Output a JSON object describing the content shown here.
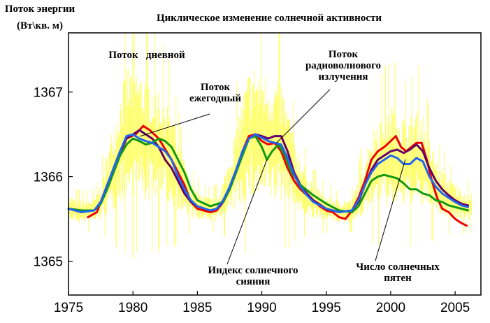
{
  "chart_data": {
    "type": "line",
    "title": "Циклическое изменение солнечной активности",
    "ylabel": [
      "Поток энергии",
      "(Вт\\кв. м)"
    ],
    "xlabel": "",
    "xlim": [
      1975,
      2007
    ],
    "ylim": [
      1364.6,
      1367.7
    ],
    "x_ticks": [
      1975,
      1980,
      1985,
      1990,
      1995,
      2000,
      2005
    ],
    "y_ticks": [
      1365,
      1366,
      1367
    ],
    "grid": false,
    "legend": "none",
    "colors": {
      "daily": "#ffff33",
      "sunspots": "#ee0000",
      "radio": "#660066",
      "sunshine": "#119911",
      "annual": "#2266ee"
    },
    "series": [
      {
        "key": "sunspots",
        "points": [
          [
            1976.5,
            1365.52
          ],
          [
            1977.2,
            1365.58
          ],
          [
            1978,
            1365.9
          ],
          [
            1978.8,
            1366.2
          ],
          [
            1979.5,
            1366.45
          ],
          [
            1980.2,
            1366.5
          ],
          [
            1980.8,
            1366.6
          ],
          [
            1981.3,
            1366.55
          ],
          [
            1982,
            1366.45
          ],
          [
            1982.6,
            1366.3
          ],
          [
            1983,
            1366.2
          ],
          [
            1983.5,
            1366.05
          ],
          [
            1984,
            1365.9
          ],
          [
            1984.5,
            1365.7
          ],
          [
            1985,
            1365.62
          ],
          [
            1985.5,
            1365.6
          ],
          [
            1986,
            1365.58
          ],
          [
            1986.5,
            1365.6
          ],
          [
            1987,
            1365.7
          ],
          [
            1987.5,
            1365.85
          ],
          [
            1988,
            1366.05
          ],
          [
            1988.5,
            1366.3
          ],
          [
            1989,
            1366.48
          ],
          [
            1989.5,
            1366.5
          ],
          [
            1990,
            1366.42
          ],
          [
            1990.5,
            1366.38
          ],
          [
            1991,
            1366.4
          ],
          [
            1991.5,
            1366.3
          ],
          [
            1992,
            1366.1
          ],
          [
            1992.5,
            1365.95
          ],
          [
            1993,
            1365.85
          ],
          [
            1993.5,
            1365.78
          ],
          [
            1994,
            1365.72
          ],
          [
            1994.5,
            1365.65
          ],
          [
            1995,
            1365.6
          ],
          [
            1995.5,
            1365.58
          ],
          [
            1996,
            1365.52
          ],
          [
            1996.5,
            1365.5
          ],
          [
            1997,
            1365.6
          ],
          [
            1997.5,
            1365.75
          ],
          [
            1998,
            1365.95
          ],
          [
            1998.5,
            1366.2
          ],
          [
            1999,
            1366.3
          ],
          [
            1999.5,
            1366.35
          ],
          [
            2000,
            1366.42
          ],
          [
            2000.4,
            1366.48
          ],
          [
            2000.8,
            1366.35
          ],
          [
            2001.2,
            1366.3
          ],
          [
            2001.6,
            1366.35
          ],
          [
            2002,
            1366.4
          ],
          [
            2002.4,
            1366.4
          ],
          [
            2002.8,
            1366.2
          ],
          [
            2003.2,
            1365.95
          ],
          [
            2003.6,
            1365.75
          ],
          [
            2004,
            1365.62
          ],
          [
            2004.5,
            1365.58
          ],
          [
            2005,
            1365.5
          ],
          [
            2005.5,
            1365.45
          ],
          [
            2005.9,
            1365.42
          ]
        ]
      },
      {
        "key": "radio",
        "points": [
          [
            1975,
            1365.62
          ],
          [
            1976,
            1365.6
          ],
          [
            1977,
            1365.6
          ],
          [
            1977.5,
            1365.7
          ],
          [
            1978,
            1365.88
          ],
          [
            1978.5,
            1366.1
          ],
          [
            1979,
            1366.3
          ],
          [
            1979.5,
            1366.45
          ],
          [
            1980,
            1366.5
          ],
          [
            1980.5,
            1366.55
          ],
          [
            1981,
            1366.5
          ],
          [
            1981.5,
            1366.45
          ],
          [
            1982,
            1366.35
          ],
          [
            1982.5,
            1366.2
          ],
          [
            1983,
            1366.1
          ],
          [
            1983.5,
            1365.95
          ],
          [
            1984,
            1365.8
          ],
          [
            1984.5,
            1365.7
          ],
          [
            1985,
            1365.65
          ],
          [
            1986,
            1365.6
          ],
          [
            1986.5,
            1365.62
          ],
          [
            1987,
            1365.7
          ],
          [
            1987.5,
            1365.85
          ],
          [
            1988,
            1366.05
          ],
          [
            1988.5,
            1366.3
          ],
          [
            1989,
            1366.45
          ],
          [
            1989.5,
            1366.5
          ],
          [
            1990,
            1366.48
          ],
          [
            1990.5,
            1366.45
          ],
          [
            1991,
            1366.48
          ],
          [
            1991.5,
            1366.48
          ],
          [
            1992,
            1366.3
          ],
          [
            1992.5,
            1366.05
          ],
          [
            1993,
            1365.9
          ],
          [
            1993.5,
            1365.8
          ],
          [
            1994,
            1365.72
          ],
          [
            1995,
            1365.62
          ],
          [
            1996,
            1365.58
          ],
          [
            1997,
            1365.6
          ],
          [
            1997.5,
            1365.7
          ],
          [
            1998,
            1365.9
          ],
          [
            1998.5,
            1366.08
          ],
          [
            1999,
            1366.2
          ],
          [
            1999.5,
            1366.25
          ],
          [
            2000,
            1366.3
          ],
          [
            2000.5,
            1366.32
          ],
          [
            2001,
            1366.28
          ],
          [
            2001.5,
            1366.32
          ],
          [
            2002,
            1366.38
          ],
          [
            2002.5,
            1366.3
          ],
          [
            2003,
            1366.1
          ],
          [
            2003.5,
            1365.95
          ],
          [
            2004,
            1365.85
          ],
          [
            2004.5,
            1365.78
          ],
          [
            2005,
            1365.72
          ],
          [
            2005.5,
            1365.68
          ],
          [
            2006,
            1365.66
          ]
        ]
      },
      {
        "key": "sunshine",
        "points": [
          [
            1975,
            1365.62
          ],
          [
            1976,
            1365.6
          ],
          [
            1977,
            1365.6
          ],
          [
            1977.5,
            1365.68
          ],
          [
            1978,
            1365.85
          ],
          [
            1978.5,
            1366.05
          ],
          [
            1979,
            1366.25
          ],
          [
            1979.5,
            1366.38
          ],
          [
            1980,
            1366.45
          ],
          [
            1980.5,
            1366.42
          ],
          [
            1981,
            1366.38
          ],
          [
            1981.5,
            1366.4
          ],
          [
            1982,
            1366.45
          ],
          [
            1982.5,
            1366.42
          ],
          [
            1983,
            1366.35
          ],
          [
            1983.5,
            1366.2
          ],
          [
            1984,
            1366.05
          ],
          [
            1984.5,
            1365.85
          ],
          [
            1985,
            1365.72
          ],
          [
            1986,
            1365.65
          ],
          [
            1987,
            1365.7
          ],
          [
            1987.5,
            1365.85
          ],
          [
            1988,
            1366.05
          ],
          [
            1988.5,
            1366.25
          ],
          [
            1989,
            1366.45
          ],
          [
            1989.5,
            1366.48
          ],
          [
            1990,
            1366.35
          ],
          [
            1990.4,
            1366.2
          ],
          [
            1990.8,
            1366.3
          ],
          [
            1991.3,
            1366.38
          ],
          [
            1991.8,
            1366.25
          ],
          [
            1992.3,
            1366.05
          ],
          [
            1993,
            1365.9
          ],
          [
            1994,
            1365.78
          ],
          [
            1995,
            1365.68
          ],
          [
            1996,
            1365.6
          ],
          [
            1997,
            1365.58
          ],
          [
            1997.5,
            1365.65
          ],
          [
            1998,
            1365.8
          ],
          [
            1998.5,
            1365.95
          ],
          [
            1999,
            1366.0
          ],
          [
            1999.5,
            1366.02
          ],
          [
            2000,
            1366.0
          ],
          [
            2000.5,
            1365.98
          ],
          [
            2001,
            1365.92
          ],
          [
            2001.5,
            1365.85
          ],
          [
            2002,
            1365.85
          ],
          [
            2002.5,
            1365.8
          ],
          [
            2003,
            1365.78
          ],
          [
            2003.5,
            1365.72
          ],
          [
            2004,
            1365.7
          ],
          [
            2004.5,
            1365.66
          ],
          [
            2005,
            1365.64
          ],
          [
            2005.5,
            1365.62
          ],
          [
            2006,
            1365.6
          ]
        ]
      },
      {
        "key": "annual",
        "points": [
          [
            1975,
            1365.62
          ],
          [
            1976,
            1365.58
          ],
          [
            1977,
            1365.6
          ],
          [
            1977.5,
            1365.7
          ],
          [
            1978,
            1365.9
          ],
          [
            1978.5,
            1366.1
          ],
          [
            1979,
            1366.3
          ],
          [
            1979.5,
            1366.48
          ],
          [
            1980,
            1366.5
          ],
          [
            1980.5,
            1366.45
          ],
          [
            1981,
            1366.42
          ],
          [
            1981.5,
            1366.4
          ],
          [
            1982,
            1366.35
          ],
          [
            1982.5,
            1366.3
          ],
          [
            1983,
            1366.2
          ],
          [
            1983.5,
            1366.0
          ],
          [
            1984,
            1365.85
          ],
          [
            1984.5,
            1365.72
          ],
          [
            1985,
            1365.65
          ],
          [
            1986,
            1365.6
          ],
          [
            1986.5,
            1365.62
          ],
          [
            1987,
            1365.72
          ],
          [
            1987.5,
            1365.88
          ],
          [
            1988,
            1366.08
          ],
          [
            1988.5,
            1366.3
          ],
          [
            1989,
            1366.45
          ],
          [
            1989.5,
            1366.5
          ],
          [
            1990,
            1366.46
          ],
          [
            1990.5,
            1366.42
          ],
          [
            1991,
            1366.4
          ],
          [
            1991.5,
            1366.38
          ],
          [
            1992,
            1366.22
          ],
          [
            1992.5,
            1366.02
          ],
          [
            1993,
            1365.88
          ],
          [
            1993.5,
            1365.78
          ],
          [
            1994,
            1365.7
          ],
          [
            1995,
            1365.62
          ],
          [
            1996,
            1365.58
          ],
          [
            1997,
            1365.6
          ],
          [
            1997.5,
            1365.72
          ],
          [
            1998,
            1365.9
          ],
          [
            1998.5,
            1366.05
          ],
          [
            1999,
            1366.15
          ],
          [
            1999.5,
            1366.2
          ],
          [
            2000,
            1366.25
          ],
          [
            2000.5,
            1366.22
          ],
          [
            2001,
            1366.15
          ],
          [
            2001.5,
            1366.15
          ],
          [
            2002,
            1366.22
          ],
          [
            2002.5,
            1366.18
          ],
          [
            2003,
            1366.0
          ],
          [
            2003.5,
            1365.88
          ],
          [
            2004,
            1365.8
          ],
          [
            2004.5,
            1365.75
          ],
          [
            2005,
            1365.7
          ],
          [
            2005.5,
            1365.66
          ],
          [
            2006,
            1365.64
          ]
        ]
      }
    ],
    "annotations": [
      {
        "key": "daily",
        "lines": [
          "Поток   дневной"
        ]
      },
      {
        "key": "annual",
        "lines": [
          "Поток",
          "ежегодный"
        ]
      },
      {
        "key": "radio",
        "lines": [
          "Поток",
          "радиоволнового",
          "излучения"
        ]
      },
      {
        "key": "sunshine",
        "lines": [
          "Индекс солнечного",
          "сияния"
        ]
      },
      {
        "key": "sunspots",
        "lines": [
          "Число солнечных",
          "пятен"
        ]
      }
    ]
  }
}
